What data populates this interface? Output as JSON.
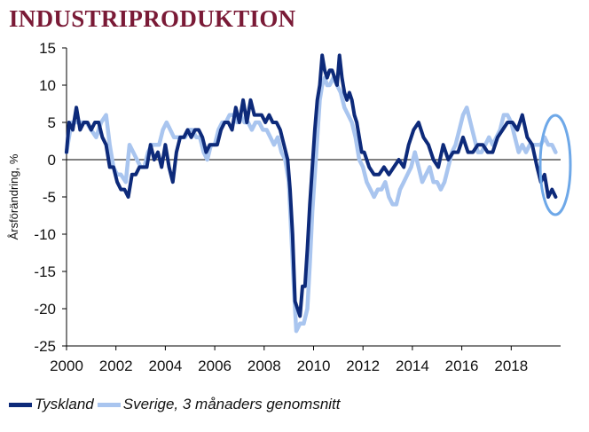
{
  "colors": {
    "title": "#7a1a36",
    "tyskland": "#0d2a7a",
    "sverige": "#a9c5ef",
    "highlight": "#6ea8e8"
  },
  "title": "INDUSTRIPRODUKTION",
  "chart_data": {
    "type": "line",
    "title": "INDUSTRIPRODUKTION",
    "xlabel": "",
    "ylabel": "Årsförändring, %",
    "xlim": [
      2000,
      2020
    ],
    "ylim": [
      -25,
      15
    ],
    "x_ticks": [
      "2000",
      "2002",
      "2004",
      "2006",
      "2008",
      "2010",
      "2012",
      "2014",
      "2016",
      "2018"
    ],
    "y_ticks": [
      "15",
      "10",
      "5",
      "0",
      "-5",
      "-10",
      "-15",
      "-20",
      "-25"
    ],
    "grid": false,
    "legend_position": "bottom",
    "annotation": "ellipse highlighting latest values (2019)",
    "series": [
      {
        "name": "Tyskland",
        "color": "#0d2a7a",
        "points": [
          [
            2000.0,
            1
          ],
          [
            2000.1,
            5
          ],
          [
            2000.25,
            4
          ],
          [
            2000.4,
            7
          ],
          [
            2000.55,
            4
          ],
          [
            2000.7,
            5
          ],
          [
            2000.85,
            5
          ],
          [
            2001.0,
            4
          ],
          [
            2001.15,
            5
          ],
          [
            2001.3,
            5
          ],
          [
            2001.45,
            3
          ],
          [
            2001.6,
            2
          ],
          [
            2001.75,
            -1
          ],
          [
            2001.9,
            -1
          ],
          [
            2002.05,
            -3
          ],
          [
            2002.2,
            -4
          ],
          [
            2002.35,
            -4
          ],
          [
            2002.5,
            -5
          ],
          [
            2002.65,
            -2
          ],
          [
            2002.8,
            -2
          ],
          [
            2002.95,
            -1
          ],
          [
            2003.1,
            -1
          ],
          [
            2003.25,
            -1
          ],
          [
            2003.4,
            2
          ],
          [
            2003.55,
            0
          ],
          [
            2003.7,
            1
          ],
          [
            2003.85,
            -1
          ],
          [
            2004.0,
            2
          ],
          [
            2004.15,
            -1
          ],
          [
            2004.3,
            -3
          ],
          [
            2004.45,
            1
          ],
          [
            2004.6,
            3
          ],
          [
            2004.75,
            3
          ],
          [
            2004.9,
            4
          ],
          [
            2005.05,
            3
          ],
          [
            2005.2,
            4
          ],
          [
            2005.35,
            4
          ],
          [
            2005.5,
            3
          ],
          [
            2005.65,
            1
          ],
          [
            2005.8,
            2
          ],
          [
            2005.95,
            2
          ],
          [
            2006.1,
            2
          ],
          [
            2006.25,
            4
          ],
          [
            2006.4,
            5
          ],
          [
            2006.55,
            5
          ],
          [
            2006.7,
            4
          ],
          [
            2006.85,
            7
          ],
          [
            2007.0,
            5
          ],
          [
            2007.15,
            8
          ],
          [
            2007.3,
            5
          ],
          [
            2007.45,
            8
          ],
          [
            2007.6,
            6
          ],
          [
            2007.75,
            6
          ],
          [
            2007.9,
            6
          ],
          [
            2008.05,
            5
          ],
          [
            2008.2,
            6
          ],
          [
            2008.35,
            5
          ],
          [
            2008.5,
            5
          ],
          [
            2008.65,
            4
          ],
          [
            2008.8,
            2
          ],
          [
            2008.95,
            0
          ],
          [
            2009.05,
            -4
          ],
          [
            2009.15,
            -10
          ],
          [
            2009.25,
            -19
          ],
          [
            2009.35,
            -20
          ],
          [
            2009.45,
            -21
          ],
          [
            2009.55,
            -17
          ],
          [
            2009.65,
            -17
          ],
          [
            2009.75,
            -12
          ],
          [
            2009.85,
            -6
          ],
          [
            2009.95,
            -1
          ],
          [
            2010.05,
            4
          ],
          [
            2010.15,
            8
          ],
          [
            2010.25,
            10
          ],
          [
            2010.35,
            14
          ],
          [
            2010.45,
            12
          ],
          [
            2010.55,
            11
          ],
          [
            2010.65,
            12
          ],
          [
            2010.75,
            12
          ],
          [
            2010.85,
            11
          ],
          [
            2010.95,
            10
          ],
          [
            2011.05,
            14
          ],
          [
            2011.15,
            11
          ],
          [
            2011.25,
            9
          ],
          [
            2011.35,
            8
          ],
          [
            2011.45,
            9
          ],
          [
            2011.55,
            8
          ],
          [
            2011.65,
            6
          ],
          [
            2011.75,
            5
          ],
          [
            2011.85,
            3
          ],
          [
            2011.95,
            1
          ],
          [
            2012.05,
            1
          ],
          [
            2012.25,
            -1
          ],
          [
            2012.45,
            -2
          ],
          [
            2012.65,
            -2
          ],
          [
            2012.85,
            -1
          ],
          [
            2013.05,
            -2
          ],
          [
            2013.25,
            -1
          ],
          [
            2013.45,
            0
          ],
          [
            2013.65,
            -1
          ],
          [
            2013.85,
            2
          ],
          [
            2014.05,
            4
          ],
          [
            2014.25,
            5
          ],
          [
            2014.45,
            3
          ],
          [
            2014.65,
            2
          ],
          [
            2014.85,
            0
          ],
          [
            2015.05,
            -1
          ],
          [
            2015.25,
            2
          ],
          [
            2015.45,
            0
          ],
          [
            2015.65,
            1
          ],
          [
            2015.85,
            1
          ],
          [
            2016.05,
            3
          ],
          [
            2016.25,
            1
          ],
          [
            2016.45,
            1
          ],
          [
            2016.65,
            2
          ],
          [
            2016.85,
            2
          ],
          [
            2017.05,
            1
          ],
          [
            2017.25,
            1
          ],
          [
            2017.45,
            3
          ],
          [
            2017.65,
            4
          ],
          [
            2017.85,
            5
          ],
          [
            2018.05,
            5
          ],
          [
            2018.25,
            4
          ],
          [
            2018.45,
            6
          ],
          [
            2018.65,
            3
          ],
          [
            2018.85,
            2
          ],
          [
            2019.05,
            -1
          ],
          [
            2019.2,
            -3
          ],
          [
            2019.35,
            -2
          ],
          [
            2019.5,
            -5
          ],
          [
            2019.65,
            -4
          ],
          [
            2019.8,
            -5
          ]
        ]
      },
      {
        "name": "Sverige, 3 månaders genomsnitt",
        "color": "#a9c5ef",
        "points": [
          [
            2000.0,
            1
          ],
          [
            2000.2,
            5
          ],
          [
            2000.4,
            5
          ],
          [
            2000.6,
            5
          ],
          [
            2000.8,
            5
          ],
          [
            2001.0,
            4
          ],
          [
            2001.2,
            3
          ],
          [
            2001.4,
            5
          ],
          [
            2001.6,
            6
          ],
          [
            2001.75,
            2
          ],
          [
            2001.9,
            -1
          ],
          [
            2002.05,
            -2
          ],
          [
            2002.2,
            -2
          ],
          [
            2002.4,
            -3
          ],
          [
            2002.55,
            2
          ],
          [
            2002.7,
            1
          ],
          [
            2002.85,
            0
          ],
          [
            2003.0,
            -1
          ],
          [
            2003.15,
            -1
          ],
          [
            2003.3,
            1
          ],
          [
            2003.45,
            2
          ],
          [
            2003.6,
            2
          ],
          [
            2003.75,
            2
          ],
          [
            2003.9,
            4
          ],
          [
            2004.05,
            5
          ],
          [
            2004.2,
            4
          ],
          [
            2004.35,
            3
          ],
          [
            2004.5,
            3
          ],
          [
            2004.65,
            3
          ],
          [
            2004.8,
            3
          ],
          [
            2004.95,
            4
          ],
          [
            2005.1,
            4
          ],
          [
            2005.25,
            3
          ],
          [
            2005.4,
            3
          ],
          [
            2005.55,
            1
          ],
          [
            2005.7,
            0
          ],
          [
            2005.85,
            2
          ],
          [
            2006.0,
            2
          ],
          [
            2006.15,
            4
          ],
          [
            2006.3,
            5
          ],
          [
            2006.45,
            5
          ],
          [
            2006.6,
            6
          ],
          [
            2006.75,
            6
          ],
          [
            2006.9,
            5
          ],
          [
            2007.05,
            6
          ],
          [
            2007.2,
            5
          ],
          [
            2007.35,
            5
          ],
          [
            2007.5,
            4
          ],
          [
            2007.65,
            5
          ],
          [
            2007.8,
            5
          ],
          [
            2007.95,
            4
          ],
          [
            2008.1,
            4
          ],
          [
            2008.25,
            3
          ],
          [
            2008.4,
            2
          ],
          [
            2008.55,
            3
          ],
          [
            2008.7,
            1
          ],
          [
            2008.85,
            0
          ],
          [
            2009.0,
            -3
          ],
          [
            2009.1,
            -10
          ],
          [
            2009.2,
            -17
          ],
          [
            2009.3,
            -23
          ],
          [
            2009.45,
            -22
          ],
          [
            2009.6,
            -22
          ],
          [
            2009.75,
            -20
          ],
          [
            2009.85,
            -14
          ],
          [
            2009.95,
            -7
          ],
          [
            2010.05,
            -2
          ],
          [
            2010.15,
            3
          ],
          [
            2010.25,
            8
          ],
          [
            2010.35,
            10
          ],
          [
            2010.45,
            11
          ],
          [
            2010.55,
            10
          ],
          [
            2010.65,
            10
          ],
          [
            2010.8,
            11
          ],
          [
            2010.95,
            10
          ],
          [
            2011.1,
            9
          ],
          [
            2011.25,
            7
          ],
          [
            2011.4,
            6
          ],
          [
            2011.55,
            5
          ],
          [
            2011.7,
            3
          ],
          [
            2011.85,
            0
          ],
          [
            2012.0,
            -1
          ],
          [
            2012.15,
            -3
          ],
          [
            2012.3,
            -4
          ],
          [
            2012.45,
            -5
          ],
          [
            2012.6,
            -4
          ],
          [
            2012.75,
            -4
          ],
          [
            2012.9,
            -3
          ],
          [
            2013.05,
            -5
          ],
          [
            2013.2,
            -6
          ],
          [
            2013.35,
            -6
          ],
          [
            2013.5,
            -4
          ],
          [
            2013.65,
            -3
          ],
          [
            2013.8,
            -2
          ],
          [
            2013.95,
            -1
          ],
          [
            2014.1,
            1
          ],
          [
            2014.25,
            -1
          ],
          [
            2014.4,
            -3
          ],
          [
            2014.55,
            -2
          ],
          [
            2014.7,
            -1
          ],
          [
            2014.85,
            -3
          ],
          [
            2015.0,
            -3
          ],
          [
            2015.15,
            -4
          ],
          [
            2015.3,
            -3
          ],
          [
            2015.45,
            -1
          ],
          [
            2015.6,
            1
          ],
          [
            2015.75,
            2
          ],
          [
            2015.9,
            4
          ],
          [
            2016.05,
            6
          ],
          [
            2016.2,
            7
          ],
          [
            2016.35,
            5
          ],
          [
            2016.5,
            3
          ],
          [
            2016.65,
            1
          ],
          [
            2016.8,
            1
          ],
          [
            2016.95,
            2
          ],
          [
            2017.1,
            3
          ],
          [
            2017.25,
            2
          ],
          [
            2017.4,
            3
          ],
          [
            2017.55,
            4
          ],
          [
            2017.7,
            6
          ],
          [
            2017.85,
            6
          ],
          [
            2018.0,
            5
          ],
          [
            2018.15,
            3
          ],
          [
            2018.3,
            1
          ],
          [
            2018.45,
            2
          ],
          [
            2018.6,
            1
          ],
          [
            2018.75,
            2
          ],
          [
            2018.9,
            2
          ],
          [
            2019.05,
            2
          ],
          [
            2019.2,
            2
          ],
          [
            2019.35,
            3
          ],
          [
            2019.5,
            2
          ],
          [
            2019.65,
            2
          ],
          [
            2019.8,
            1
          ]
        ]
      }
    ]
  },
  "legend": [
    {
      "label": "Tyskland",
      "color": "#0d2a7a"
    },
    {
      "label": "Sverige, 3 månaders genomsnitt",
      "color": "#a9c5ef"
    }
  ]
}
